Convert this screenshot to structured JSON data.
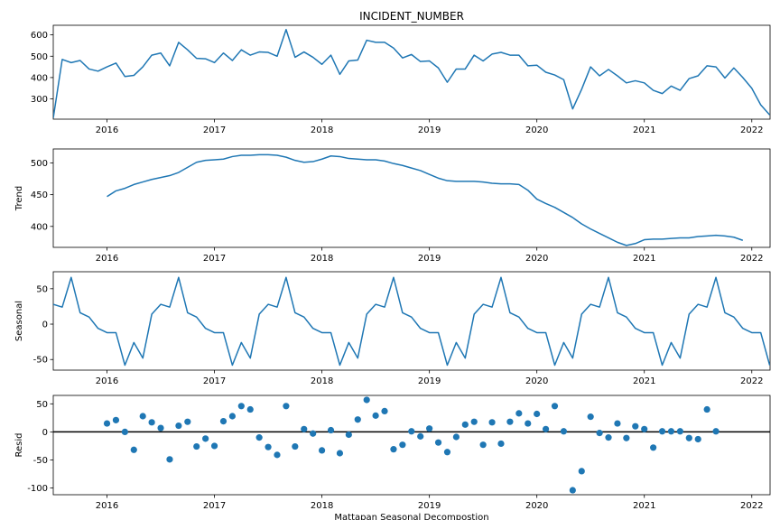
{
  "figure": {
    "title": "INCIDENT_NUMBER",
    "xlabel": "Mattapan Seasonal Decompostion"
  },
  "colors": {
    "series": "#1f77b4",
    "axis": "#000000",
    "zero_line": "#000000"
  },
  "chart_data": [
    {
      "type": "line",
      "name": "observed",
      "title": "INCIDENT_NUMBER",
      "ylabel": "",
      "xlim": [
        2015.5,
        2022.17
      ],
      "ylim": [
        205,
        645
      ],
      "yticks": [
        300,
        400,
        500,
        600
      ],
      "xticks": [
        2016,
        2017,
        2018,
        2019,
        2020,
        2021,
        2022
      ],
      "x_start": 2015.5,
      "x_step": 0.08333,
      "values": [
        210,
        485,
        470,
        480,
        440,
        430,
        450,
        468,
        405,
        410,
        450,
        505,
        515,
        455,
        565,
        530,
        490,
        488,
        470,
        515,
        480,
        530,
        505,
        520,
        518,
        500,
        625,
        495,
        520,
        495,
        462,
        505,
        415,
        478,
        482,
        575,
        565,
        565,
        538,
        492,
        508,
        475,
        478,
        445,
        378,
        440,
        440,
        505,
        478,
        510,
        518,
        505,
        505,
        455,
        458,
        425,
        412,
        390,
        253,
        345,
        450,
        408,
        438,
        408,
        375,
        385,
        375,
        340,
        325,
        360,
        340,
        395,
        408,
        455,
        450,
        398,
        445,
        400,
        350,
        272,
        225
      ]
    },
    {
      "type": "line",
      "name": "trend",
      "ylabel": "Trend",
      "xlim": [
        2015.5,
        2022.17
      ],
      "ylim": [
        367,
        522
      ],
      "yticks": [
        400,
        450,
        500
      ],
      "xticks": [
        2016,
        2017,
        2018,
        2019,
        2020,
        2021,
        2022
      ],
      "x_start": 2016.0,
      "x_step": 0.08333,
      "values": [
        447,
        456,
        460,
        466,
        470,
        474,
        477,
        480,
        485,
        493,
        501,
        504,
        505,
        506,
        510,
        512,
        512,
        513,
        513,
        512,
        509,
        504,
        501,
        502,
        506,
        511,
        510,
        507,
        506,
        505,
        505,
        503,
        499,
        496,
        492,
        488,
        482,
        476,
        472,
        471,
        471,
        471,
        470,
        468,
        467,
        467,
        466,
        457,
        443,
        436,
        430,
        422,
        414,
        404,
        396,
        389,
        382,
        375,
        370,
        373,
        379,
        380,
        380,
        381,
        382,
        382,
        384,
        385,
        386,
        385,
        383,
        378
      ]
    },
    {
      "type": "line",
      "name": "seasonal",
      "ylabel": "Seasonal",
      "xlim": [
        2015.5,
        2022.17
      ],
      "ylim": [
        -65,
        74
      ],
      "yticks": [
        -50,
        0,
        50
      ],
      "xticks": [
        2016,
        2017,
        2018,
        2019,
        2020,
        2021,
        2022
      ],
      "x_start": 2015.5,
      "x_step": 0.08333,
      "pattern": [
        28,
        24,
        66,
        16,
        10,
        -6,
        -12,
        -12,
        -58,
        -26,
        -48,
        14
      ],
      "values": [
        28,
        24,
        66,
        16,
        10,
        -6,
        -12,
        -12,
        -58,
        -26,
        -48,
        14,
        28,
        24,
        66,
        16,
        10,
        -6,
        -12,
        -12,
        -58,
        -26,
        -48,
        14,
        28,
        24,
        66,
        16,
        10,
        -6,
        -12,
        -12,
        -58,
        -26,
        -48,
        14,
        28,
        24,
        66,
        16,
        10,
        -6,
        -12,
        -12,
        -58,
        -26,
        -48,
        14,
        28,
        24,
        66,
        16,
        10,
        -6,
        -12,
        -12,
        -58,
        -26,
        -48,
        14,
        28,
        24,
        66,
        16,
        10,
        -6,
        -12,
        -12,
        -58,
        -26,
        -48,
        14,
        28,
        24,
        66,
        16,
        10,
        -6,
        -12,
        -12,
        -58
      ]
    },
    {
      "type": "scatter",
      "name": "resid",
      "ylabel": "Resid",
      "xlim": [
        2015.5,
        2022.17
      ],
      "ylim": [
        -112,
        65
      ],
      "yticks": [
        -100,
        -50,
        0,
        50
      ],
      "xticks": [
        2016,
        2017,
        2018,
        2019,
        2020,
        2021,
        2022
      ],
      "zero_line": true,
      "x_start": 2016.0,
      "x_step": 0.08333,
      "values": [
        15,
        21,
        0,
        -32,
        28,
        17,
        7,
        -49,
        11,
        18,
        -26,
        -12,
        -25,
        19,
        28,
        46,
        40,
        -10,
        -27,
        -41,
        46,
        -26,
        5,
        -3,
        -33,
        3,
        -38,
        -5,
        22,
        57,
        29,
        37,
        -31,
        -23,
        1,
        -8,
        6,
        -19,
        -36,
        -9,
        13,
        18,
        -23,
        17,
        -21,
        18,
        33,
        15,
        32,
        5,
        46,
        1,
        -104,
        -70,
        27,
        -2,
        -10,
        15,
        -11,
        10,
        5,
        -28,
        1,
        1,
        1,
        -11,
        -13,
        40,
        1
      ]
    }
  ]
}
